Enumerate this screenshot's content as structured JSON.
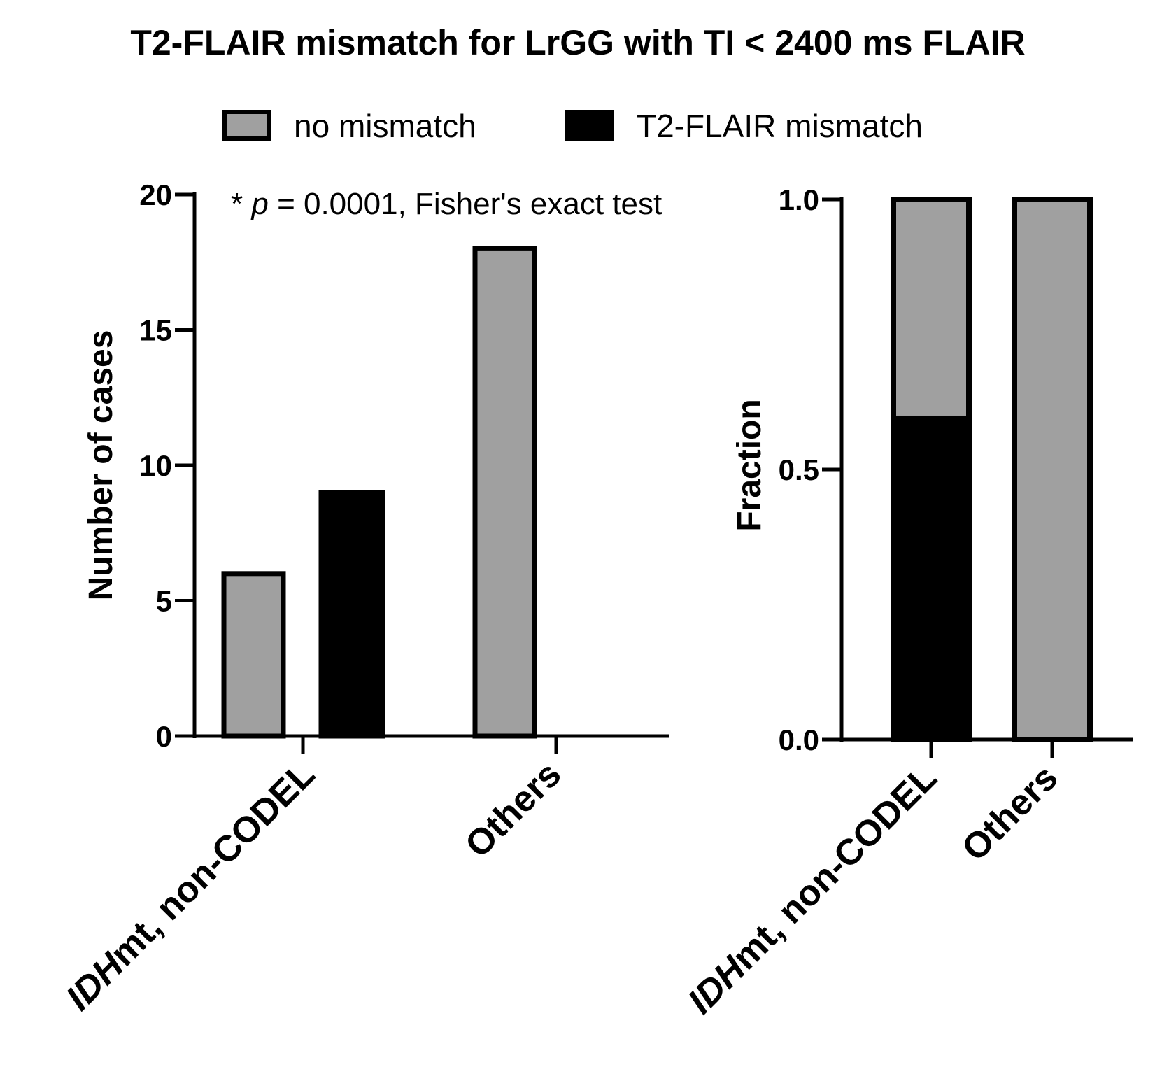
{
  "title": "T2-FLAIR mismatch for LrGG with TI < 2400 ms FLAIR",
  "legend": [
    {
      "label": "no mismatch",
      "color": "#a0a0a0",
      "outline": "#000000"
    },
    {
      "label": "T2-FLAIR mismatch",
      "color": "#000000",
      "outline": "#000000"
    }
  ],
  "annotation": {
    "star": "* ",
    "p": "p",
    "rest": " = 0.0001, Fisher's exact test"
  },
  "chart_data": [
    {
      "type": "bar",
      "categories": [
        "IDHmt, non-CODEL",
        "Others"
      ],
      "category_italic_prefix": [
        "IDH",
        ""
      ],
      "category_rest": [
        "mt, non-CODEL",
        "Others"
      ],
      "series": [
        {
          "name": "no mismatch",
          "values": [
            6,
            18
          ],
          "color": "#a0a0a0"
        },
        {
          "name": "T2-FLAIR mismatch",
          "values": [
            9,
            0
          ],
          "color": "#000000"
        }
      ],
      "ylabel": "Number of cases",
      "ylim": [
        0,
        20
      ],
      "yticks": [
        0,
        5,
        10,
        15,
        20
      ],
      "ytick_labels": [
        "0",
        "5",
        "10",
        "15",
        "20"
      ],
      "grid": false
    },
    {
      "type": "bar",
      "stacked": true,
      "categories": [
        "IDHmt, non-CODEL",
        "Others"
      ],
      "category_italic_prefix": [
        "IDH",
        ""
      ],
      "category_rest": [
        "mt, non-CODEL",
        "Others"
      ],
      "series": [
        {
          "name": "T2-FLAIR mismatch",
          "values": [
            0.6,
            0.0
          ],
          "color": "#000000"
        },
        {
          "name": "no mismatch",
          "values": [
            0.4,
            1.0
          ],
          "color": "#a0a0a0"
        }
      ],
      "ylabel": "Fraction",
      "ylim": [
        0,
        1
      ],
      "yticks": [
        0,
        0.5,
        1
      ],
      "ytick_labels": [
        "0.0",
        "0.5",
        "1.0"
      ],
      "grid": false
    }
  ]
}
